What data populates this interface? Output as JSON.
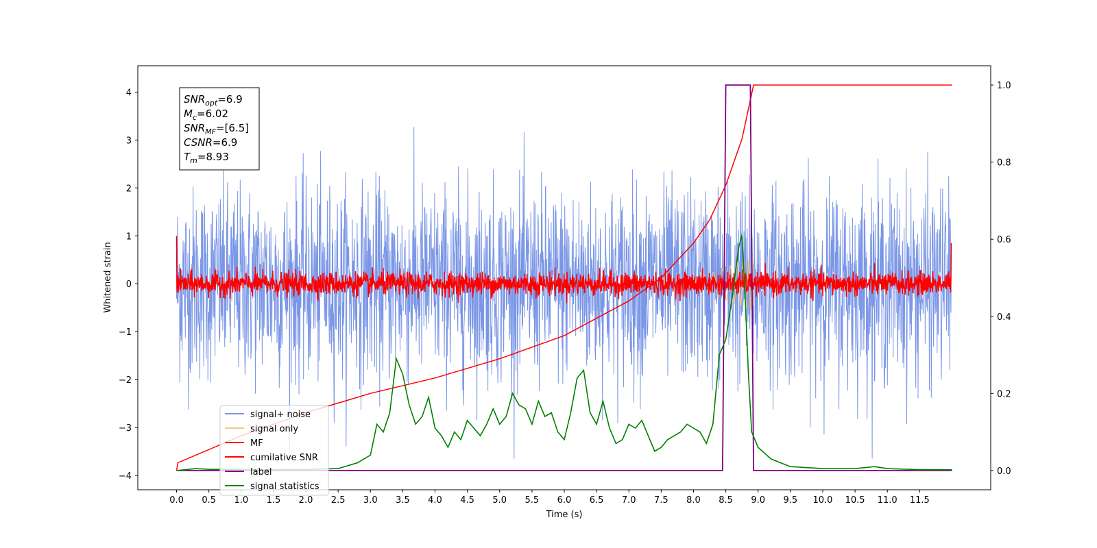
{
  "chart_data": {
    "type": "line",
    "xlabel": "Time (s)",
    "ylabel": "Whitened strain",
    "xlim": [
      -0.6,
      12.6
    ],
    "ylim": [
      -4.3,
      4.55
    ],
    "y2lim": [
      -0.05,
      1.05
    ],
    "xticks": [
      "0.0",
      "0.5",
      "1.0",
      "1.5",
      "2.0",
      "2.5",
      "3.0",
      "3.5",
      "4.0",
      "4.5",
      "5.0",
      "5.5",
      "6.0",
      "6.5",
      "7.0",
      "7.5",
      "8.0",
      "8.5",
      "9.0",
      "9.5",
      "10.0",
      "10.5",
      "11.0",
      "11.5"
    ],
    "yticks": [
      "−4",
      "−3",
      "−2",
      "−1",
      "0",
      "1",
      "2",
      "3",
      "4"
    ],
    "y2ticks": [
      "0.0",
      "0.2",
      "0.4",
      "0.6",
      "0.8",
      "1.0"
    ],
    "grid": false,
    "legend_position": "lower-left",
    "annotation": {
      "lines": [
        {
          "base": "SNR",
          "sub": "opt",
          "value": "=6.9"
        },
        {
          "base": "M",
          "sub": "c",
          "value": "=6.02"
        },
        {
          "base": "SNR",
          "sub": "MF",
          "value": "=[6.5]"
        },
        {
          "base": "CSNR",
          "sub": "",
          "value": "=6.9"
        },
        {
          "base": "T",
          "sub": "m",
          "value": "=8.93"
        }
      ]
    },
    "series": [
      {
        "name": "signal+ noise",
        "color": "#7a96e6",
        "axis": "left",
        "kind": "noise",
        "amplitude_std": 1.0,
        "peak_min": -3.65,
        "peak_max": 4.18
      },
      {
        "name": "signal only",
        "color": "#f5c77e",
        "axis": "left",
        "kind": "chirp",
        "x_end": 8.93,
        "amplitude_max": 0.55
      },
      {
        "name": "MF",
        "color": "#ff0000",
        "axis": "left",
        "kind": "noise",
        "amplitude_std": 0.12,
        "edge_values": [
          1.0,
          0.85
        ]
      },
      {
        "name": "cumilative SNR",
        "color": "#ff0000",
        "axis": "right",
        "x": [
          0.0,
          0.02,
          1.0,
          2.0,
          3.0,
          4.0,
          5.0,
          6.0,
          7.0,
          7.5,
          8.0,
          8.25,
          8.5,
          8.75,
          8.93,
          9.0,
          12.0
        ],
        "y": [
          0.0,
          0.02,
          0.09,
          0.15,
          0.2,
          0.24,
          0.29,
          0.35,
          0.44,
          0.5,
          0.59,
          0.65,
          0.74,
          0.86,
          1.0,
          1.0,
          1.0
        ]
      },
      {
        "name": "label",
        "color": "#800080",
        "axis": "right",
        "x": [
          0.0,
          8.45,
          8.5,
          8.88,
          8.93,
          12.0
        ],
        "y": [
          0.0,
          0.0,
          1.0,
          1.0,
          0.0,
          0.0
        ]
      },
      {
        "name": "signal statistics",
        "color": "#008000",
        "axis": "right",
        "x": [
          0.0,
          0.3,
          0.5,
          1.0,
          1.5,
          2.0,
          2.5,
          2.8,
          3.0,
          3.1,
          3.2,
          3.3,
          3.4,
          3.5,
          3.6,
          3.7,
          3.8,
          3.9,
          4.0,
          4.1,
          4.2,
          4.3,
          4.4,
          4.5,
          4.6,
          4.7,
          4.8,
          4.9,
          5.0,
          5.1,
          5.2,
          5.3,
          5.4,
          5.5,
          5.6,
          5.7,
          5.8,
          5.9,
          6.0,
          6.1,
          6.2,
          6.3,
          6.4,
          6.5,
          6.6,
          6.7,
          6.8,
          6.9,
          7.0,
          7.1,
          7.2,
          7.3,
          7.4,
          7.5,
          7.6,
          7.7,
          7.8,
          7.9,
          8.0,
          8.1,
          8.2,
          8.3,
          8.4,
          8.5,
          8.6,
          8.7,
          8.75,
          8.8,
          8.85,
          8.9,
          9.0,
          9.2,
          9.5,
          10.0,
          10.5,
          10.8,
          11.0,
          11.5,
          12.0
        ],
        "y": [
          0.0,
          0.005,
          0.003,
          0.003,
          0.002,
          0.003,
          0.005,
          0.02,
          0.04,
          0.12,
          0.1,
          0.15,
          0.29,
          0.25,
          0.17,
          0.12,
          0.14,
          0.19,
          0.11,
          0.09,
          0.06,
          0.1,
          0.08,
          0.13,
          0.11,
          0.09,
          0.12,
          0.16,
          0.12,
          0.14,
          0.2,
          0.17,
          0.16,
          0.12,
          0.18,
          0.14,
          0.15,
          0.1,
          0.08,
          0.15,
          0.24,
          0.26,
          0.15,
          0.12,
          0.18,
          0.11,
          0.07,
          0.08,
          0.12,
          0.11,
          0.13,
          0.09,
          0.05,
          0.06,
          0.08,
          0.09,
          0.1,
          0.12,
          0.11,
          0.1,
          0.07,
          0.12,
          0.3,
          0.34,
          0.45,
          0.58,
          0.61,
          0.45,
          0.25,
          0.1,
          0.06,
          0.03,
          0.01,
          0.005,
          0.005,
          0.01,
          0.005,
          0.002,
          0.002
        ]
      }
    ]
  }
}
